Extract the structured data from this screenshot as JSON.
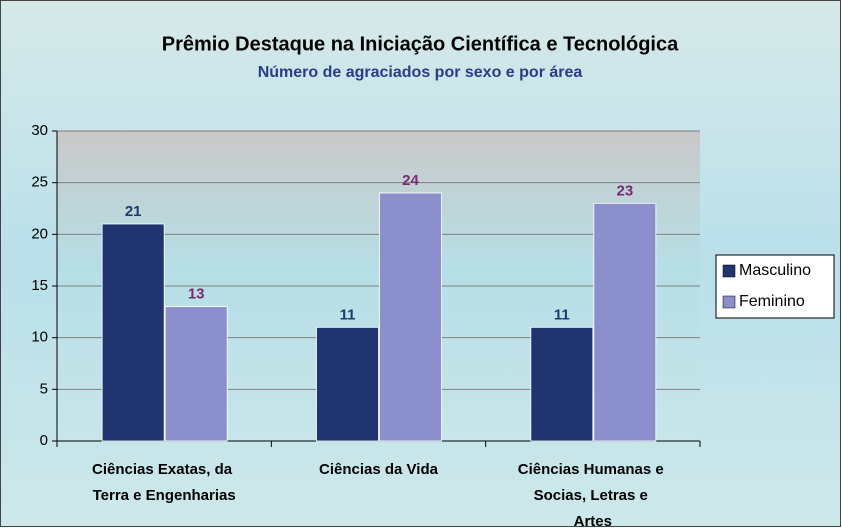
{
  "chart_data": {
    "type": "bar",
    "title": "Prêmio Destaque na Iniciação Científica e Tecnológica",
    "subtitle": "Número de agraciados por sexo e por área",
    "categories": [
      "Ciências Exatas, da Terra e Engenharias",
      "Ciências da Vida",
      "Ciências Humanas e Socias, Letras e Artes"
    ],
    "series": [
      {
        "name": "Masculino",
        "color": "#1f3470",
        "label_color": "#1f3a6e",
        "values": [
          21,
          11,
          11
        ]
      },
      {
        "name": "Feminino",
        "color": "#8b8fcc",
        "label_color": "#7a2a72",
        "values": [
          13,
          24,
          23
        ]
      }
    ],
    "ylim": [
      0,
      30
    ],
    "yticks": [
      0,
      5,
      10,
      15,
      20,
      25,
      30
    ],
    "grid": true,
    "legend": "right"
  }
}
